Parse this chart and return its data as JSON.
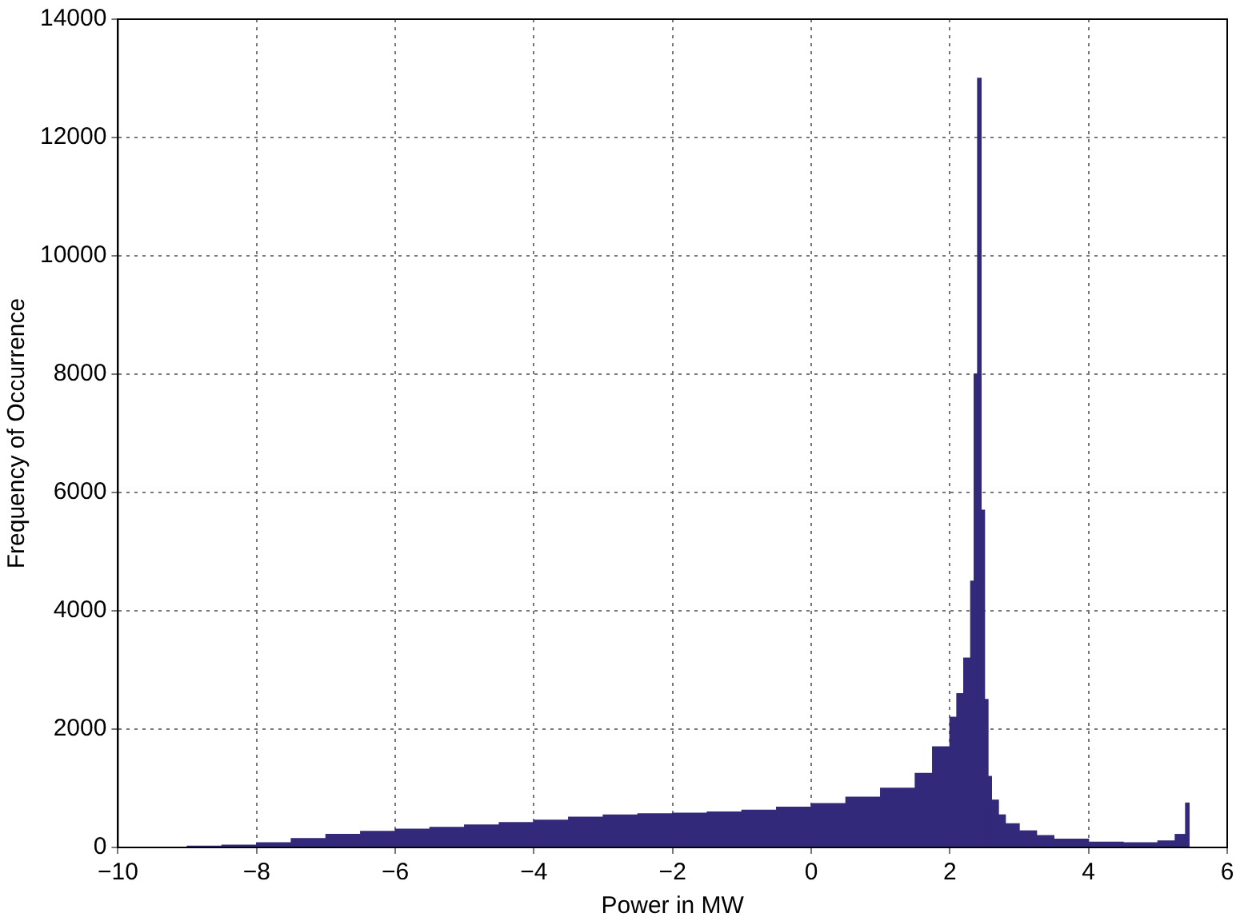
{
  "chart_data": {
    "type": "histogram",
    "xlabel": "Power in MW",
    "ylabel": "Frequency of Occurrence",
    "bins": [
      -9,
      -8.5,
      -8,
      -7.5,
      -7,
      -6.5,
      -6,
      -5.5,
      -5,
      -4.5,
      -4,
      -3.5,
      -3,
      -2.5,
      -2,
      -1.5,
      -1,
      -0.5,
      0,
      0.5,
      1,
      1.5,
      1.75,
      2.0,
      2.1,
      2.2,
      2.3,
      2.35,
      2.4,
      2.45,
      2.5,
      2.55,
      2.6,
      2.7,
      2.8,
      3.0,
      3.25,
      3.5,
      4.0,
      4.5,
      5.0,
      5.25,
      5.4,
      5.45
    ],
    "values": [
      20,
      40,
      80,
      150,
      220,
      270,
      310,
      340,
      380,
      420,
      460,
      510,
      550,
      570,
      580,
      600,
      630,
      680,
      740,
      850,
      1000,
      1250,
      1700,
      2200,
      2600,
      3200,
      4500,
      8000,
      13000,
      5700,
      2500,
      1200,
      800,
      550,
      400,
      280,
      200,
      140,
      90,
      80,
      110,
      220,
      750
    ],
    "color": "#33297a",
    "xlim": [
      -10,
      6
    ],
    "xticks": [
      -10,
      -8,
      -6,
      -4,
      -2,
      0,
      2,
      4,
      6
    ],
    "ylim": [
      0,
      14000
    ],
    "yticks": [
      0,
      2000,
      4000,
      6000,
      8000,
      10000,
      12000,
      14000
    ],
    "grid": true
  }
}
